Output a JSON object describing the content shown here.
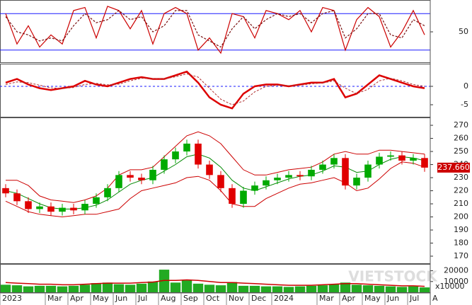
{
  "chart_data": [
    {
      "type": "line",
      "ylim": [
        0,
        100
      ],
      "yticks": [
        50
      ],
      "levels": [
        20,
        80
      ],
      "level_color": "#1a1aff",
      "series": [
        {
          "color": "#cc0000",
          "dash": false,
          "values": [
            80,
            30,
            60,
            25,
            45,
            30,
            85,
            90,
            40,
            92,
            85,
            55,
            85,
            30,
            80,
            90,
            80,
            20,
            40,
            15,
            80,
            75,
            40,
            85,
            80,
            70,
            85,
            50,
            90,
            85,
            20,
            70,
            90,
            75,
            25,
            50,
            85,
            45
          ]
        },
        {
          "color": "#7a1010",
          "dash": true,
          "values": [
            75,
            50,
            45,
            35,
            40,
            35,
            60,
            80,
            65,
            70,
            85,
            70,
            75,
            50,
            60,
            85,
            85,
            45,
            35,
            25,
            55,
            75,
            55,
            70,
            80,
            75,
            80,
            65,
            80,
            85,
            40,
            55,
            80,
            80,
            45,
            40,
            70,
            60
          ]
        }
      ]
    },
    {
      "type": "line",
      "ylim": [
        -8.27,
        5.77
      ],
      "yticks": [
        0,
        -5
      ],
      "levels": [
        0
      ],
      "level_color": "#1a1aff",
      "series": [
        {
          "color": "#dd0000",
          "dash": false,
          "width": 2.5,
          "values": [
            1,
            2,
            0.5,
            -0.5,
            -1,
            -0.5,
            0,
            1.5,
            0.5,
            0,
            1,
            2,
            2.5,
            2,
            2,
            3,
            4,
            1,
            -3,
            -5,
            -6,
            -2,
            0,
            0.5,
            0.5,
            0,
            0.5,
            1,
            1,
            2,
            -3,
            -2,
            0.5,
            3,
            2,
            1,
            0,
            -0.5
          ]
        },
        {
          "color": "#b03030",
          "dash": true,
          "width": 1,
          "values": [
            0.5,
            1.2,
            1,
            0.3,
            -0.4,
            -0.6,
            -0.3,
            0.5,
            0.8,
            0.4,
            0.6,
            1.5,
            2.2,
            2.1,
            2,
            2.6,
            3.4,
            2.5,
            -0.5,
            -3.5,
            -5,
            -4,
            -1.5,
            0,
            0.3,
            0.2,
            0.3,
            0.7,
            0.9,
            1.5,
            -0.5,
            -2,
            -0.8,
            1.5,
            2.2,
            1.5,
            0.5,
            0
          ]
        }
      ]
    },
    {
      "type": "candlestick",
      "ylim": [
        164.6,
        274.9
      ],
      "yticks": [
        170,
        180,
        190,
        200,
        210,
        220,
        230,
        240,
        250,
        260,
        270
      ],
      "up_color": "#00aa00",
      "down_color": "#e00000",
      "open": [
        222,
        218,
        212,
        206,
        208,
        204,
        207,
        205,
        210,
        215,
        222,
        232,
        230,
        228,
        236,
        244,
        250,
        256,
        240,
        232,
        222,
        210,
        220,
        224,
        228,
        230,
        232,
        231,
        236,
        240,
        245,
        224,
        230,
        240,
        246,
        247,
        243,
        245
      ],
      "high": [
        225,
        221,
        215,
        211,
        211,
        210,
        210,
        213,
        218,
        225,
        235,
        235,
        233,
        239,
        247,
        253,
        259,
        259,
        243,
        235,
        225,
        223,
        227,
        231,
        233,
        235,
        235,
        239,
        243,
        248,
        248,
        233,
        243,
        249,
        250,
        250,
        248,
        248
      ],
      "low": [
        215,
        209,
        203,
        203,
        201,
        201,
        202,
        202,
        207,
        212,
        219,
        227,
        225,
        225,
        233,
        241,
        247,
        237,
        229,
        219,
        207,
        207,
        217,
        221,
        225,
        227,
        228,
        228,
        233,
        237,
        221,
        221,
        227,
        237,
        243,
        240,
        240,
        234.5
      ],
      "close": [
        218,
        212,
        206,
        208,
        204,
        207,
        205,
        210,
        215,
        222,
        232,
        230,
        228,
        236,
        244,
        250,
        256,
        240,
        232,
        222,
        210,
        220,
        224,
        228,
        230,
        232,
        231,
        236,
        240,
        245,
        224,
        230,
        240,
        246,
        247,
        243,
        245,
        237.66
      ],
      "last_label": {
        "value": 237.66,
        "label": "237.660"
      },
      "series": [
        {
          "color": "#cc0000",
          "values": [
            228,
            228,
            224,
            216,
            213,
            212,
            211,
            213,
            216,
            222,
            232,
            236,
            236,
            238,
            246,
            254,
            262,
            265,
            262,
            256,
            246,
            236,
            232,
            232,
            234,
            236,
            237,
            238,
            242,
            248,
            250,
            248,
            248,
            251,
            251,
            250,
            249,
            248
          ]
        },
        {
          "color": "#008800",
          "values": [
            220,
            218,
            214,
            210,
            207,
            206,
            206,
            207,
            209,
            213,
            219,
            225,
            228,
            230,
            235,
            240,
            246,
            248,
            245,
            238,
            228,
            222,
            220,
            223,
            226,
            229,
            231,
            232,
            235,
            239,
            238,
            234,
            235,
            240,
            244,
            246,
            245,
            243
          ]
        },
        {
          "color": "#cc0000",
          "values": [
            212,
            208,
            204,
            202,
            201,
            200,
            201,
            202,
            202,
            204,
            206,
            214,
            220,
            222,
            224,
            226,
            230,
            231,
            228,
            220,
            210,
            208,
            208,
            214,
            218,
            222,
            225,
            226,
            228,
            230,
            226,
            220,
            222,
            229,
            237,
            242,
            241,
            238
          ]
        }
      ]
    },
    {
      "type": "bar",
      "ylim": [
        0,
        25000
      ],
      "yticks": [
        10000,
        20000
      ],
      "unit_label": "x10000",
      "color": "#22aa22",
      "watermark": "VIETSTOCK",
      "values": [
        7000,
        6500,
        5500,
        6000,
        6000,
        5500,
        6000,
        7000,
        8500,
        9000,
        7500,
        7000,
        8000,
        10000,
        21000,
        9000,
        11000,
        8000,
        7000,
        6500,
        9500,
        6000,
        6000,
        5500,
        5500,
        5000,
        5500,
        6000,
        6500,
        7500,
        9000,
        7000,
        6500,
        6000,
        5500,
        5000,
        5500,
        4500
      ],
      "ma": {
        "color": "#cc0000",
        "values": [
          9000,
          8500,
          8000,
          7500,
          7500,
          7000,
          7000,
          7500,
          8000,
          8500,
          8500,
          8500,
          9000,
          9500,
          11000,
          11000,
          11500,
          11000,
          10000,
          9000,
          9000,
          8500,
          8000,
          7500,
          7000,
          6500,
          6500,
          6500,
          7000,
          7500,
          8000,
          8000,
          7500,
          7000,
          6500,
          6000,
          6000,
          5500
        ]
      },
      "xlim": [
        0,
        38
      ],
      "xticks": [
        {
          "value": 0,
          "label": "2023"
        },
        {
          "value": 4,
          "label": "Mar"
        },
        {
          "value": 6,
          "label": "Apr"
        },
        {
          "value": 8,
          "label": "May"
        },
        {
          "value": 10,
          "label": "Jun"
        },
        {
          "value": 12,
          "label": "Jul"
        },
        {
          "value": 14,
          "label": "Aug"
        },
        {
          "value": 16,
          "label": "Sep"
        },
        {
          "value": 18,
          "label": "Oct"
        },
        {
          "value": 20,
          "label": "Nov"
        },
        {
          "value": 22,
          "label": "Dec"
        },
        {
          "value": 24,
          "label": "2024"
        },
        {
          "value": 28,
          "label": "Mar"
        },
        {
          "value": 30,
          "label": "Apr"
        },
        {
          "value": 32,
          "label": "May"
        },
        {
          "value": 34,
          "label": "Jun"
        },
        {
          "value": 36,
          "label": "Jul"
        },
        {
          "value": 38,
          "label": "A"
        }
      ]
    }
  ]
}
